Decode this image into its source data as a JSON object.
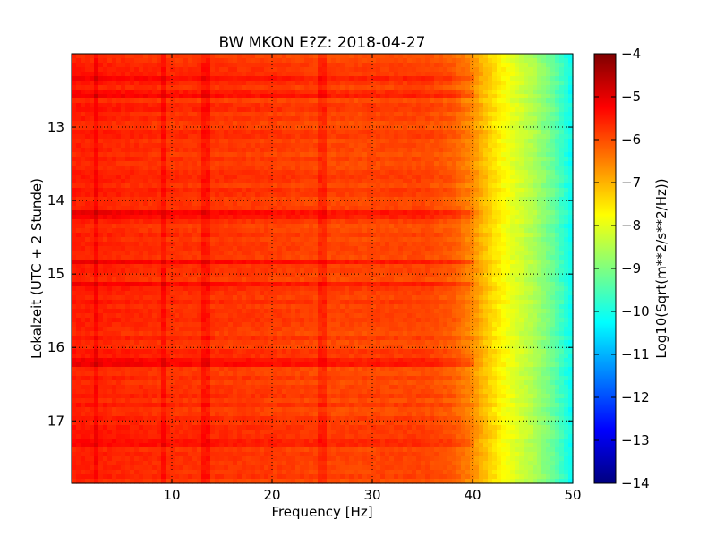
{
  "chart_data": {
    "type": "heatmap",
    "title": "BW MKON E?Z: 2018-04-27",
    "xlabel": "Frequency [Hz]",
    "ylabel": "Lokalzeit (UTC + 2 Stunde)",
    "xlim": [
      0,
      50
    ],
    "ylim": [
      17.85,
      12.0
    ],
    "y_inverted": true,
    "x_ticks": [
      10,
      20,
      30,
      40,
      50
    ],
    "y_ticks": [
      13,
      14,
      15,
      16,
      17
    ],
    "grid": true,
    "colormap": "jet",
    "colorbar": {
      "label": "Log10(Sqrt(m**2/s**2/Hz))",
      "range": [
        -14,
        -4
      ],
      "ticks": [
        -4,
        -5,
        -6,
        -7,
        -8,
        -9,
        -10,
        -11,
        -12,
        -13,
        -14
      ]
    },
    "frequency_profile": {
      "x": [
        0,
        5,
        10,
        20,
        25,
        30,
        35,
        38,
        40,
        42,
        44,
        46,
        48,
        50
      ],
      "value": [
        -5.5,
        -5.6,
        -5.7,
        -5.8,
        -5.9,
        -5.9,
        -5.9,
        -6.1,
        -6.6,
        -7.4,
        -8.0,
        -8.5,
        -9.2,
        -10.2
      ]
    },
    "high_power_bands": [
      {
        "time": 12.35,
        "value": -5.0
      },
      {
        "time": 12.55,
        "value": -5.1
      },
      {
        "time": 14.2,
        "value": -5.0
      },
      {
        "time": 14.85,
        "value": -5.1
      },
      {
        "time": 15.15,
        "value": -5.1
      },
      {
        "time": 16.2,
        "value": -5.1
      },
      {
        "time": 17.3,
        "value": -5.0
      }
    ],
    "vertical_lines": [
      {
        "x": 2.5,
        "value": -5.0
      },
      {
        "x": 9.2,
        "value": -5.1
      },
      {
        "x": 13.5,
        "value": -5.1
      },
      {
        "x": 25.0,
        "value": -5.2
      }
    ]
  }
}
